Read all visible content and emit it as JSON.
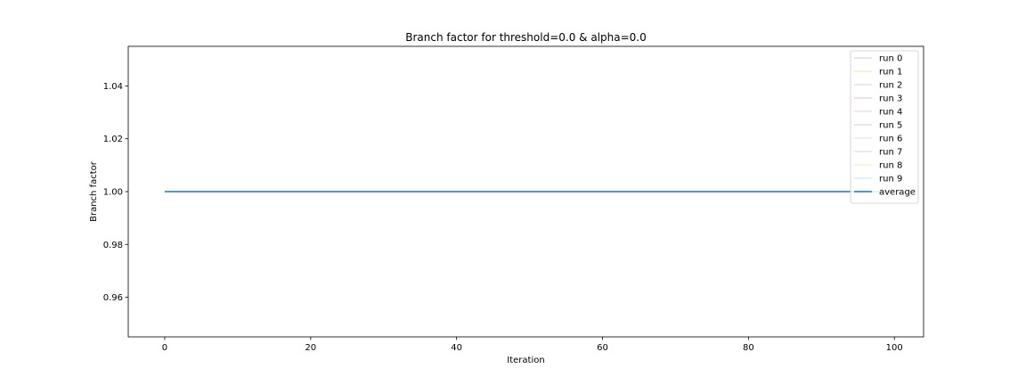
{
  "chart_data": {
    "type": "line",
    "title": "Branch factor for threshold=0.0 & alpha=0.0",
    "xlabel": "Iteration",
    "ylabel": "Branch factor",
    "xlim": [
      -5,
      104
    ],
    "ylim": [
      0.945,
      1.055
    ],
    "xticks": [
      0,
      20,
      40,
      60,
      80,
      100
    ],
    "xtick_labels": [
      "0",
      "20",
      "40",
      "60",
      "80",
      "100"
    ],
    "yticks": [
      0.96,
      0.98,
      1.0,
      1.02,
      1.04
    ],
    "ytick_labels": [
      "0.96",
      "0.98",
      "1.00",
      "1.02",
      "1.04"
    ],
    "grid": false,
    "legend_position": "top-right",
    "x_range": [
      0,
      100
    ],
    "series": [
      {
        "name": "run 0",
        "color": "#1f77b4",
        "alpha": 0.3,
        "width": 1,
        "values": [
          [
            0,
            1.0
          ],
          [
            100,
            1.0
          ]
        ]
      },
      {
        "name": "run 1",
        "color": "#ff7f0e",
        "alpha": 0.3,
        "width": 1,
        "values": [
          [
            0,
            1.0
          ],
          [
            100,
            1.0
          ]
        ]
      },
      {
        "name": "run 2",
        "color": "#2ca02c",
        "alpha": 0.3,
        "width": 1,
        "values": [
          [
            0,
            1.0
          ],
          [
            100,
            1.0
          ]
        ]
      },
      {
        "name": "run 3",
        "color": "#d62728",
        "alpha": 0.3,
        "width": 1,
        "values": [
          [
            0,
            1.0
          ],
          [
            100,
            1.0
          ]
        ]
      },
      {
        "name": "run 4",
        "color": "#9467bd",
        "alpha": 0.3,
        "width": 1,
        "values": [
          [
            0,
            1.0
          ],
          [
            100,
            1.0
          ]
        ]
      },
      {
        "name": "run 5",
        "color": "#8c564b",
        "alpha": 0.3,
        "width": 1,
        "values": [
          [
            0,
            1.0
          ],
          [
            100,
            1.0
          ]
        ]
      },
      {
        "name": "run 6",
        "color": "#e377c2",
        "alpha": 0.3,
        "width": 1,
        "values": [
          [
            0,
            1.0
          ],
          [
            100,
            1.0
          ]
        ]
      },
      {
        "name": "run 7",
        "color": "#7f7f7f",
        "alpha": 0.3,
        "width": 1,
        "values": [
          [
            0,
            1.0
          ],
          [
            100,
            1.0
          ]
        ]
      },
      {
        "name": "run 8",
        "color": "#bcbd22",
        "alpha": 0.3,
        "width": 1,
        "values": [
          [
            0,
            1.0
          ],
          [
            100,
            1.0
          ]
        ]
      },
      {
        "name": "run 9",
        "color": "#17becf",
        "alpha": 0.3,
        "width": 1,
        "values": [
          [
            0,
            1.0
          ],
          [
            100,
            1.0
          ]
        ]
      },
      {
        "name": "average",
        "color": "#1f77b4",
        "alpha": 1.0,
        "width": 1.5,
        "values": [
          [
            0,
            1.0
          ],
          [
            100,
            1.0
          ]
        ]
      }
    ]
  }
}
